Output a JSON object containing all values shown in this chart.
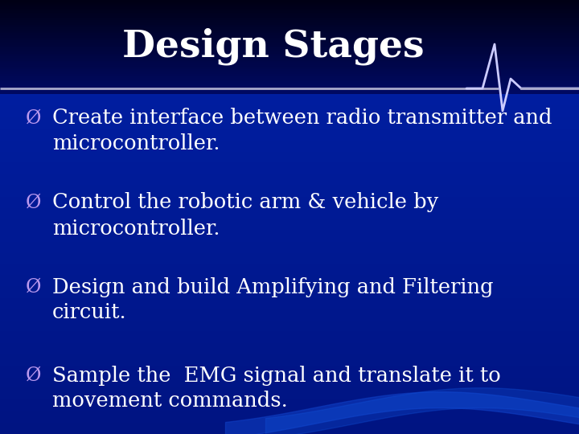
{
  "title": "Design Stages",
  "title_fontsize": 34,
  "title_color": "#FFFFFF",
  "bullet_color": "#FFFFFF",
  "bullet_marker_color": "#BB99EE",
  "bullet_fontsize": 18.5,
  "separator_color": "#AAAACC",
  "ecg_color": "#CCCCFF",
  "header_top_color": "#00001A",
  "header_bot_color": "#001060",
  "body_top_color": "#0033BB",
  "body_bot_color": "#0022AA",
  "bullets": [
    [
      "Create interface between radio transmitter and",
      "microcontroller."
    ],
    [
      "Control the robotic arm & vehicle by",
      "microcontroller."
    ],
    [
      "Design and build Amplifying and Filtering",
      "circuit."
    ],
    [
      "Sample the  EMG signal and translate it to",
      "movement commands."
    ]
  ]
}
